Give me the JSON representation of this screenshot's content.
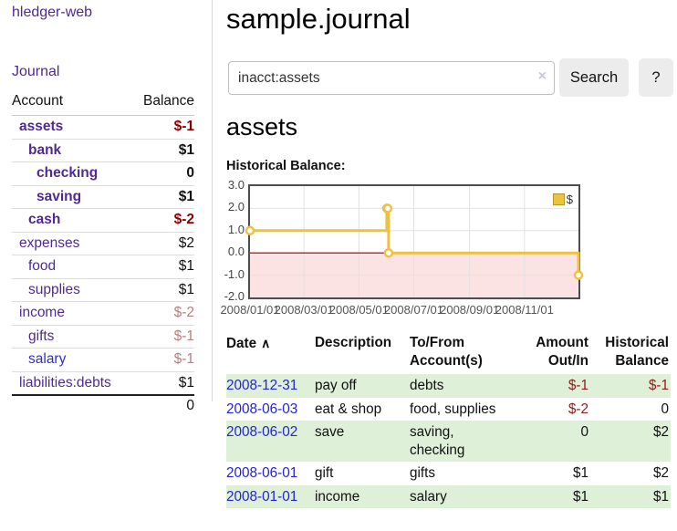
{
  "app": {
    "title": "hledger-web",
    "nav_journal": "Journal"
  },
  "colors": {
    "link_purple": "#4f2a93",
    "link_blue": "#2d2dd6",
    "date_link_blue": "#2424d2",
    "negative_strong": "#8b0000",
    "negative_muted": "#b87e7e",
    "table_negative": "#8f1a1a",
    "row_green": "#dff0d8",
    "series_gold": "#edc240",
    "below_zero_pink": "#fbe3e3",
    "zero_line_red": "#8b0000"
  },
  "sidebar": {
    "header": {
      "account": "Account",
      "balance": "Balance"
    },
    "accounts": [
      {
        "name": "assets",
        "depth": 1,
        "balance": "$-1",
        "bold": true,
        "neg": "neg-strong",
        "blue": false
      },
      {
        "name": "bank",
        "depth": 2,
        "balance": "$1",
        "bold": true,
        "neg": "",
        "blue": false
      },
      {
        "name": "checking",
        "depth": 3,
        "balance": "0",
        "bold": true,
        "neg": "",
        "blue": false
      },
      {
        "name": "saving",
        "depth": 3,
        "balance": "$1",
        "bold": true,
        "neg": "",
        "blue": false
      },
      {
        "name": "cash",
        "depth": 2,
        "balance": "$-2",
        "bold": true,
        "neg": "neg-strong",
        "blue": false
      },
      {
        "name": "expenses",
        "depth": 1,
        "balance": "$2",
        "bold": false,
        "neg": "",
        "blue": false
      },
      {
        "name": "food",
        "depth": 2,
        "balance": "$1",
        "bold": false,
        "neg": "",
        "blue": false
      },
      {
        "name": "supplies",
        "depth": 2,
        "balance": "$1",
        "bold": false,
        "neg": "",
        "blue": false
      },
      {
        "name": "income",
        "depth": 1,
        "balance": "$-2",
        "bold": false,
        "neg": "neg-muted",
        "blue": false
      },
      {
        "name": "gifts",
        "depth": 2,
        "balance": "$-1",
        "bold": false,
        "neg": "neg-muted",
        "blue": false
      },
      {
        "name": "salary",
        "depth": 2,
        "balance": "$-1",
        "bold": false,
        "neg": "neg-muted",
        "blue": true
      },
      {
        "name": "liabilities:debts",
        "depth": 1,
        "balance": "$1",
        "bold": false,
        "neg": "",
        "blue": false
      }
    ],
    "total": "0"
  },
  "header": {
    "title": "sample.journal"
  },
  "search": {
    "value": "inacct:assets",
    "clear_icon": "×",
    "button": "Search",
    "help_button": "?"
  },
  "account_page": {
    "heading": "assets",
    "chart_label": "Historical Balance:"
  },
  "chart_data": {
    "type": "line",
    "subtype": "step",
    "title": "Historical Balance",
    "x_range": [
      "2008-01-01",
      "2008-12-31"
    ],
    "ylim": [
      -2,
      3
    ],
    "yticks": [
      "3.0",
      "2.0",
      "1.0",
      "0.0",
      "-1.0",
      "-2.0"
    ],
    "xticks": [
      "2008/01/01",
      "2008/03/01",
      "2008/05/01",
      "2008/07/01",
      "2008/09/01",
      "2008/11/01"
    ],
    "grid": true,
    "legend_position": "top-right",
    "series": [
      {
        "name": "$",
        "color": "#edc240",
        "points": [
          {
            "date": "2008-01-01",
            "value": 1
          },
          {
            "date": "2008-06-01",
            "value": 2
          },
          {
            "date": "2008-06-02",
            "value": 2
          },
          {
            "date": "2008-06-03",
            "value": 0
          },
          {
            "date": "2008-12-31",
            "value": -1
          }
        ]
      }
    ]
  },
  "register": {
    "columns": [
      "Date",
      "Description",
      "To/From Account(s)",
      "Amount Out/In",
      "Historical Balance"
    ],
    "sort_icon": "∧",
    "rows": [
      {
        "date": "2008-12-31",
        "description": "pay off",
        "accounts": "debts",
        "amount": "$-1",
        "balance": "$-1"
      },
      {
        "date": "2008-06-03",
        "description": "eat & shop",
        "accounts": "food, supplies",
        "amount": "$-2",
        "balance": "0"
      },
      {
        "date": "2008-06-02",
        "description": "save",
        "accounts": "saving,\nchecking",
        "amount": "0",
        "balance": "$2"
      },
      {
        "date": "2008-06-01",
        "description": "gift",
        "accounts": "gifts",
        "amount": "$1",
        "balance": "$2"
      },
      {
        "date": "2008-01-01",
        "description": "income",
        "accounts": "salary",
        "amount": "$1",
        "balance": "$1"
      }
    ]
  }
}
